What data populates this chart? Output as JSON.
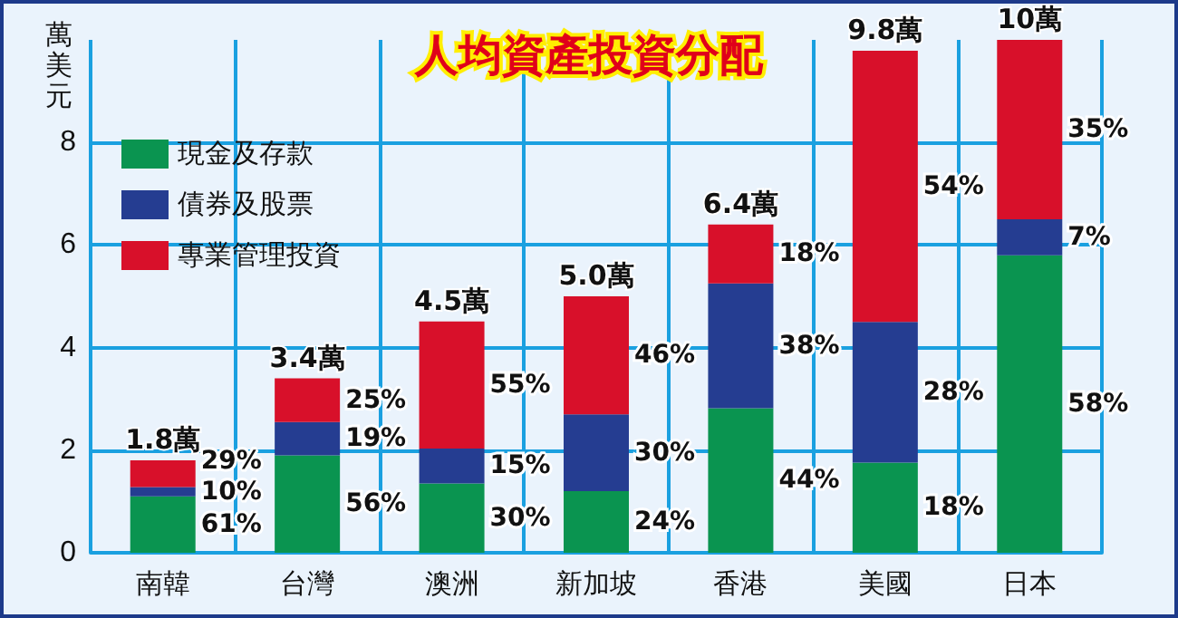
{
  "chart_data": {
    "type": "bar",
    "title": "人均資產投資分配",
    "ylabel": "萬美元",
    "stacked": true,
    "categories": [
      "南韓",
      "台灣",
      "澳洲",
      "新加坡",
      "香港",
      "美國",
      "日本"
    ],
    "series": [
      {
        "name": "現金及存款",
        "color": "#0a9450",
        "values": [
          1.1,
          1.9,
          1.35,
          1.2,
          2.82,
          1.76,
          5.8
        ]
      },
      {
        "name": "債券及股票",
        "color": "#253d91",
        "values": [
          0.18,
          0.65,
          0.68,
          1.5,
          2.43,
          2.74,
          0.7
        ]
      },
      {
        "name": "專業管理投資",
        "color": "#d8102a",
        "values": [
          0.52,
          0.85,
          2.48,
          2.3,
          1.15,
          5.29,
          3.5
        ]
      }
    ],
    "totals": [
      "1.8萬",
      "3.4萬",
      "4.5萬",
      "5.0萬",
      "6.4萬",
      "9.8萬",
      "10萬"
    ],
    "annotations": [
      "61%",
      "10%",
      "29%",
      "56%",
      "19%",
      "25%",
      "30%",
      "15%",
      "55%",
      "24%",
      "30%",
      "46%",
      "44%",
      "38%",
      "18%",
      "18%",
      "28%",
      "54%",
      "58%",
      "7%",
      "35%"
    ],
    "ylim": [
      0,
      10
    ],
    "yticks": [
      0,
      2,
      4,
      6,
      8
    ],
    "grid": true,
    "legend": "top left"
  }
}
